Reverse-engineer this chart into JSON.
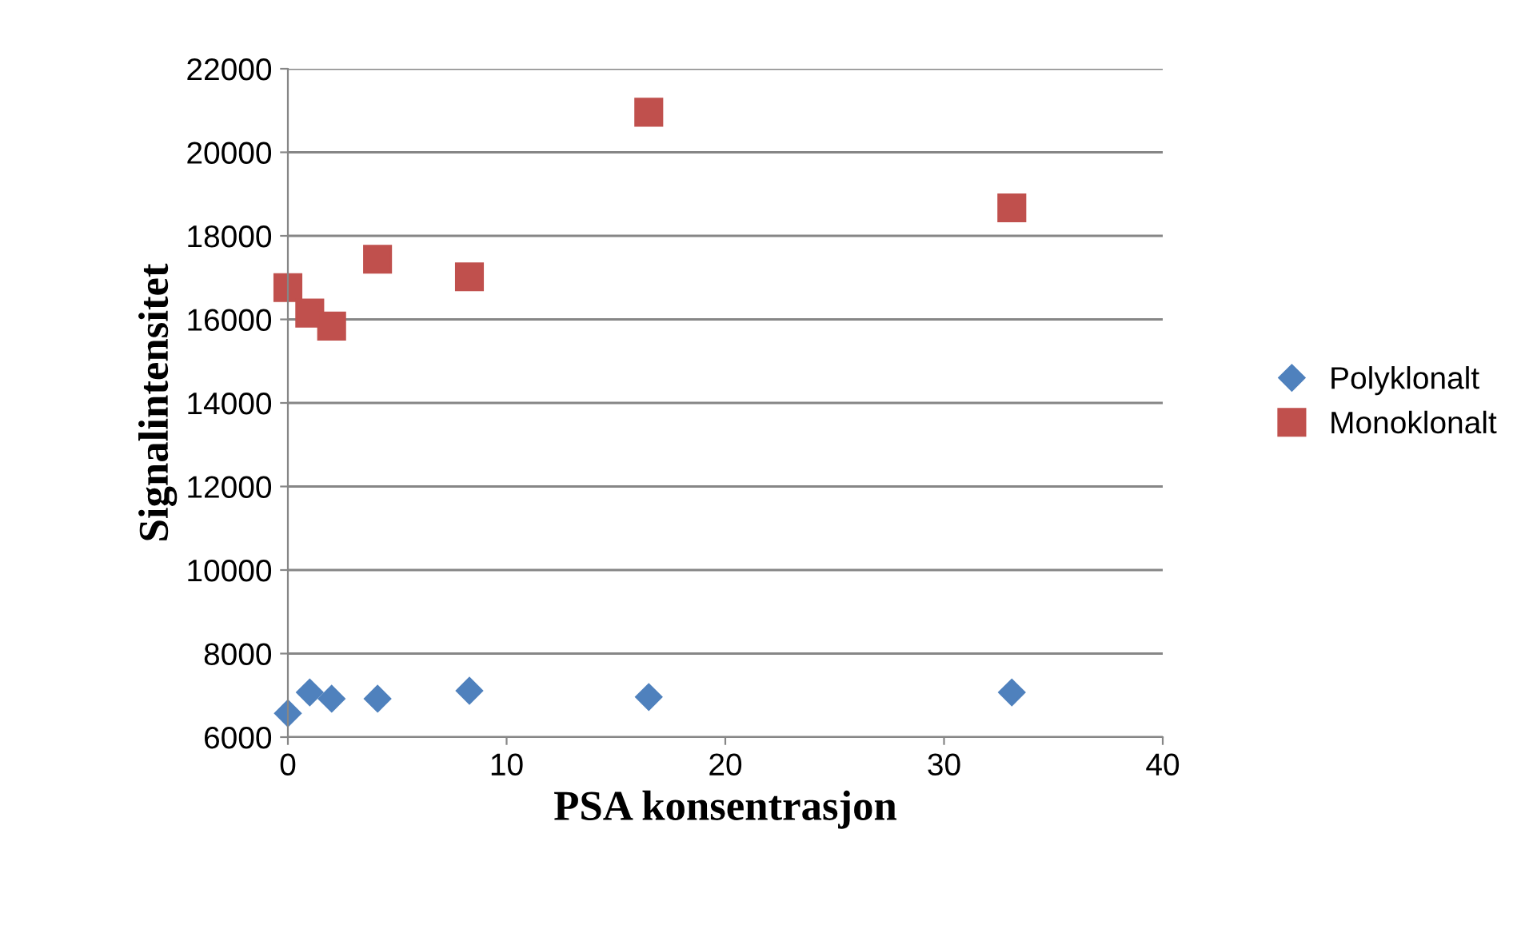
{
  "chart_data": {
    "type": "scatter",
    "xlabel": "PSA konsentrasjon",
    "ylabel": "Signalintensitet",
    "xlim": [
      0,
      40
    ],
    "xticks": [
      0,
      10,
      20,
      30,
      40
    ],
    "ylim": [
      6000,
      22000
    ],
    "yticks": [
      6000,
      8000,
      10000,
      12000,
      14000,
      16000,
      18000,
      20000,
      22000
    ],
    "grid": "y",
    "legend": "right",
    "series": [
      {
        "name": "Polyklonalt",
        "color": "#4f81bd",
        "marker": "diamond",
        "x": [
          0,
          1,
          2,
          4.1,
          8.3,
          16.5,
          33.1
        ],
        "values": [
          6570,
          7070,
          6920,
          6920,
          7110,
          6960,
          7070
        ]
      },
      {
        "name": "Monoklonalt",
        "color": "#c0504d",
        "marker": "square",
        "x": [
          0,
          1,
          2,
          4.1,
          8.3,
          16.5,
          33.1
        ],
        "values": [
          16760,
          16150,
          15840,
          17440,
          17020,
          20960,
          18670
        ]
      }
    ]
  }
}
